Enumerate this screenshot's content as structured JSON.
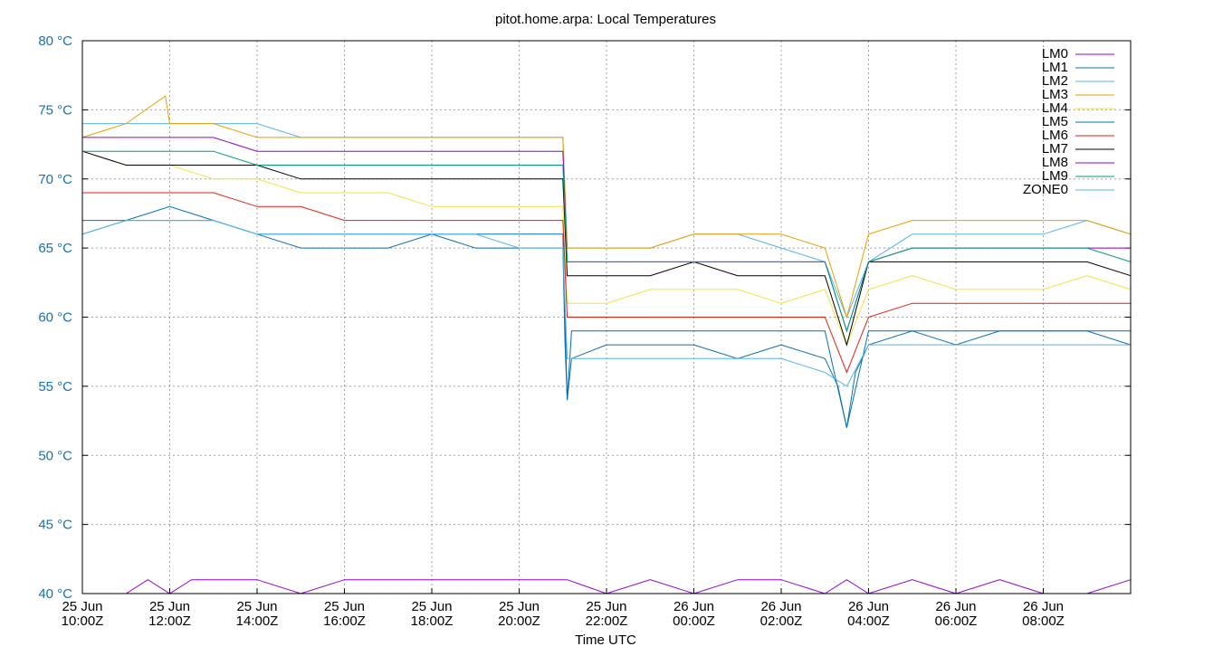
{
  "chart_data": {
    "type": "line",
    "title": "pitot.home.arpa: Local Temperatures",
    "xlabel": "Time UTC",
    "ylabel": "",
    "ylim": [
      40,
      80
    ],
    "xlim_hours": [
      0,
      24
    ],
    "grid": true,
    "legend_position": "top-right",
    "y_ticks": [
      {
        "value": 40,
        "label": "40 °C"
      },
      {
        "value": 45,
        "label": "45 °C"
      },
      {
        "value": 50,
        "label": "50 °C"
      },
      {
        "value": 55,
        "label": "55 °C"
      },
      {
        "value": 60,
        "label": "60 °C"
      },
      {
        "value": 65,
        "label": "65 °C"
      },
      {
        "value": 70,
        "label": "70 °C"
      },
      {
        "value": 75,
        "label": "75 °C"
      },
      {
        "value": 80,
        "label": "80 °C"
      }
    ],
    "x_ticks": [
      {
        "hour": 0,
        "line1": "25 Jun",
        "line2": "10:00Z"
      },
      {
        "hour": 2,
        "line1": "25 Jun",
        "line2": "12:00Z"
      },
      {
        "hour": 4,
        "line1": "25 Jun",
        "line2": "14:00Z"
      },
      {
        "hour": 6,
        "line1": "25 Jun",
        "line2": "16:00Z"
      },
      {
        "hour": 8,
        "line1": "25 Jun",
        "line2": "18:00Z"
      },
      {
        "hour": 10,
        "line1": "25 Jun",
        "line2": "20:00Z"
      },
      {
        "hour": 12,
        "line1": "25 Jun",
        "line2": "22:00Z"
      },
      {
        "hour": 14,
        "line1": "26 Jun",
        "line2": "00:00Z"
      },
      {
        "hour": 16,
        "line1": "26 Jun",
        "line2": "02:00Z"
      },
      {
        "hour": 18,
        "line1": "26 Jun",
        "line2": "04:00Z"
      },
      {
        "hour": 20,
        "line1": "26 Jun",
        "line2": "06:00Z"
      },
      {
        "hour": 22,
        "line1": "26 Jun",
        "line2": "08:00Z"
      }
    ],
    "series": [
      {
        "name": "LM0",
        "color": "#9400d3",
        "x": [
          0,
          1.0,
          1.5,
          2.0,
          2.5,
          3.0,
          4.0,
          5.0,
          6.0,
          7.0,
          8.0,
          9.0,
          10.0,
          11.0,
          11.1,
          12.0,
          13.0,
          14.0,
          15.0,
          16.0,
          17.0,
          17.5,
          18.0,
          19.0,
          20.0,
          21.0,
          22.0,
          23.0,
          24.0
        ],
        "values": [
          40,
          40,
          41,
          40,
          41,
          41,
          41,
          40,
          41,
          41,
          41,
          41,
          41,
          41,
          41,
          40,
          41,
          40,
          41,
          41,
          40,
          41,
          40,
          41,
          40,
          41,
          40,
          40,
          41
        ]
      },
      {
        "name": "LM1",
        "color": "#0f6faa",
        "x": [
          0,
          1.0,
          2.0,
          3.0,
          4.0,
          5.0,
          6.0,
          7.0,
          8.0,
          9.0,
          10.0,
          11.0,
          11.05,
          11.1,
          11.2,
          12.0,
          13.0,
          14.0,
          15.0,
          16.0,
          17.0,
          17.3,
          17.5,
          17.7,
          18.0,
          19.0,
          20.0,
          21.0,
          22.0,
          23.0,
          24.0
        ],
        "values": [
          66,
          67,
          67,
          67,
          66,
          65,
          65,
          65,
          66,
          65,
          65,
          65,
          58,
          54,
          57,
          58,
          58,
          58,
          57,
          58,
          57,
          55,
          52,
          56,
          58,
          59,
          58,
          59,
          59,
          59,
          58
        ]
      },
      {
        "name": "LM2",
        "color": "#56b4e9",
        "x": [
          0,
          1.0,
          2.0,
          3.0,
          4.0,
          5.0,
          6.0,
          7.0,
          8.0,
          9.0,
          10.0,
          11.0,
          11.1,
          12.0,
          13.0,
          14.0,
          15.0,
          16.0,
          17.0,
          17.5,
          18.0,
          19.0,
          20.0,
          21.0,
          22.0,
          23.0,
          24.0
        ],
        "values": [
          74,
          74,
          74,
          74,
          74,
          73,
          73,
          73,
          73,
          73,
          73,
          73,
          65,
          65,
          65,
          66,
          66,
          65,
          64,
          60,
          64,
          66,
          66,
          66,
          66,
          67,
          66
        ]
      },
      {
        "name": "LM3",
        "color": "#e69f00",
        "x": [
          0,
          1.0,
          1.9,
          2.0,
          3.0,
          4.0,
          5.0,
          6.0,
          7.0,
          8.0,
          9.0,
          10.0,
          11.0,
          11.1,
          12.0,
          13.0,
          14.0,
          15.0,
          16.0,
          17.0,
          17.5,
          18.0,
          19.0,
          20.0,
          21.0,
          22.0,
          23.0,
          24.0
        ],
        "values": [
          73,
          74,
          76,
          74,
          74,
          73,
          73,
          73,
          73,
          73,
          73,
          73,
          73,
          65,
          65,
          65,
          66,
          66,
          66,
          65,
          60,
          66,
          67,
          67,
          67,
          67,
          67,
          66
        ]
      },
      {
        "name": "LM4",
        "color": "#f0e442",
        "x": [
          0,
          1.0,
          2.0,
          3.0,
          4.0,
          5.0,
          6.0,
          7.0,
          8.0,
          9.0,
          10.0,
          11.0,
          11.1,
          12.0,
          13.0,
          14.0,
          15.0,
          16.0,
          17.0,
          17.5,
          18.0,
          19.0,
          20.0,
          21.0,
          22.0,
          23.0,
          24.0
        ],
        "values": [
          72,
          71,
          71,
          70,
          70,
          69,
          69,
          69,
          68,
          68,
          68,
          68,
          61,
          61,
          62,
          62,
          62,
          61,
          62,
          58,
          62,
          63,
          62,
          62,
          62,
          63,
          62
        ]
      },
      {
        "name": "LM5",
        "color": "#0072b2",
        "x": [
          0,
          1.0,
          2.0,
          3.0,
          4.0,
          5.0,
          6.0,
          7.0,
          8.0,
          9.0,
          10.0,
          11.0,
          11.05,
          11.1,
          11.2,
          12.0,
          13.0,
          14.0,
          15.0,
          16.0,
          17.0,
          17.5,
          18.0,
          19.0,
          20.0,
          21.0,
          22.0,
          23.0,
          24.0
        ],
        "values": [
          67,
          67,
          68,
          67,
          66,
          66,
          66,
          66,
          66,
          66,
          66,
          66,
          60,
          54,
          59,
          59,
          59,
          59,
          59,
          59,
          59,
          52,
          59,
          59,
          59,
          59,
          59,
          59,
          59
        ]
      },
      {
        "name": "LM6",
        "color": "#e51e10",
        "x": [
          0,
          1.0,
          2.0,
          3.0,
          4.0,
          5.0,
          6.0,
          7.0,
          8.0,
          9.0,
          10.0,
          11.0,
          11.1,
          12.0,
          13.0,
          14.0,
          15.0,
          16.0,
          17.0,
          17.5,
          18.0,
          19.0,
          20.0,
          21.0,
          22.0,
          23.0,
          24.0
        ],
        "values": [
          69,
          69,
          69,
          69,
          68,
          68,
          67,
          67,
          67,
          67,
          67,
          67,
          60,
          60,
          60,
          60,
          60,
          60,
          60,
          56,
          60,
          61,
          61,
          61,
          61,
          61,
          61
        ]
      },
      {
        "name": "LM7",
        "color": "#000000",
        "x": [
          0,
          1.0,
          2.0,
          3.0,
          4.0,
          5.0,
          6.0,
          7.0,
          8.0,
          9.0,
          10.0,
          11.0,
          11.1,
          12.0,
          13.0,
          14.0,
          15.0,
          16.0,
          17.0,
          17.5,
          18.0,
          19.0,
          20.0,
          21.0,
          22.0,
          23.0,
          24.0
        ],
        "values": [
          72,
          71,
          71,
          71,
          71,
          70,
          70,
          70,
          70,
          70,
          70,
          70,
          63,
          63,
          63,
          64,
          63,
          63,
          63,
          58,
          64,
          64,
          64,
          64,
          64,
          64,
          63
        ]
      },
      {
        "name": "LM8",
        "color": "#9400d3",
        "x": [
          0,
          1.0,
          2.0,
          3.0,
          4.0,
          5.0,
          6.0,
          7.0,
          8.0,
          9.0,
          10.0,
          11.0,
          11.1,
          12.0,
          13.0,
          14.0,
          15.0,
          16.0,
          17.0,
          17.5,
          18.0,
          19.0,
          20.0,
          21.0,
          22.0,
          23.0,
          24.0
        ],
        "values": [
          73,
          73,
          73,
          73,
          72,
          72,
          72,
          72,
          72,
          72,
          72,
          72,
          64,
          64,
          64,
          64,
          64,
          64,
          64,
          59,
          64,
          65,
          65,
          65,
          65,
          65,
          65
        ]
      },
      {
        "name": "LM9",
        "color": "#009e73",
        "x": [
          0,
          1.0,
          2.0,
          3.0,
          4.0,
          5.0,
          6.0,
          7.0,
          8.0,
          9.0,
          10.0,
          11.0,
          11.1,
          12.0,
          13.0,
          14.0,
          15.0,
          16.0,
          17.0,
          17.5,
          18.0,
          19.0,
          20.0,
          21.0,
          22.0,
          23.0,
          24.0
        ],
        "values": [
          72,
          72,
          72,
          72,
          71,
          71,
          71,
          71,
          71,
          71,
          71,
          71,
          64,
          64,
          64,
          64,
          64,
          64,
          64,
          59,
          64,
          65,
          65,
          65,
          65,
          65,
          64
        ]
      },
      {
        "name": "ZONE0",
        "color": "#56b4e9",
        "x": [
          0,
          1.0,
          2.0,
          3.0,
          4.0,
          5.0,
          6.0,
          7.0,
          8.0,
          9.0,
          10.0,
          11.0,
          11.1,
          12.0,
          13.0,
          14.0,
          15.0,
          16.0,
          17.0,
          17.5,
          18.0,
          19.0,
          20.0,
          21.0,
          22.0,
          23.0,
          24.0
        ],
        "values": [
          66,
          67,
          67,
          67,
          66,
          66,
          66,
          66,
          66,
          66,
          65,
          65,
          57,
          57,
          57,
          57,
          57,
          57,
          56,
          55,
          58,
          58,
          58,
          58,
          58,
          58,
          58
        ]
      }
    ]
  }
}
